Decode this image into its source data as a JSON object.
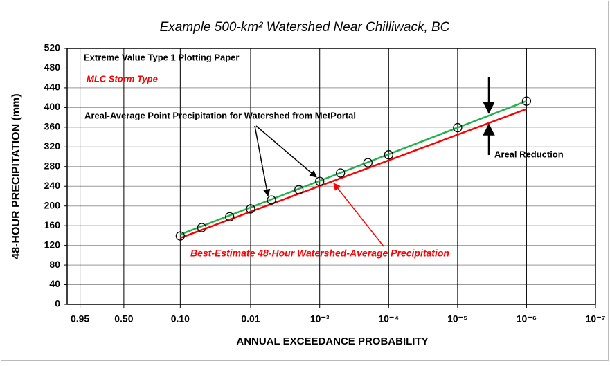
{
  "chart_data": {
    "type": "line",
    "title": "Example 500-km² Watershed Near Chilliwack, BC",
    "x_label": "ANNUAL EXCEEDANCE PROBABILITY",
    "y_label": "48-HOUR   PRECIPITATION (mm)",
    "x_scale": "gumbel",
    "xlim": [
      0.99,
      1e-07
    ],
    "xticks": [
      {
        "value": 0.95,
        "label": "0.95"
      },
      {
        "value": 0.5,
        "label": "0.50"
      },
      {
        "value": 0.1,
        "label": "0.10"
      },
      0.01,
      {
        "value": 0.001,
        "label": "10⁻³"
      },
      {
        "value": 0.0001,
        "label": "10⁻⁴"
      },
      {
        "value": 1e-05,
        "label": "10⁻⁵"
      },
      {
        "value": 1e-06,
        "label": "10⁻⁶"
      },
      {
        "value": 1e-07,
        "label": "10⁻⁷"
      }
    ],
    "ylim": [
      0,
      520
    ],
    "yticks": [
      0,
      40,
      80,
      120,
      160,
      200,
      240,
      280,
      320,
      360,
      400,
      440,
      480,
      520
    ],
    "grid": true,
    "series": [
      {
        "color": "#000000",
        "marker": "circle",
        "x": [
          0.1,
          0.05,
          0.02,
          0.01,
          0.005,
          0.002,
          0.001,
          0.0005,
          0.0002,
          0.0001,
          1e-05,
          1e-06
        ],
        "values": [
          139,
          156,
          178,
          194,
          212,
          233,
          250,
          267,
          288,
          304,
          359,
          413
        ]
      },
      {
        "color": "#22b14c",
        "marker": "line",
        "x": [
          0.1,
          1e-06
        ],
        "values": [
          142,
          413
        ]
      },
      {
        "color": "#ff0000",
        "marker": "line",
        "x": [
          0.1,
          1e-06
        ],
        "values": [
          135,
          397
        ]
      }
    ],
    "annotations": [
      "Extreme Value Type 1 Plotting Paper",
      "MLC Storm Type",
      "Areal-Average Point Precipitation for Watershed from MetPortal",
      "Areal Reduction",
      "Best-Estimate 48-Hour Watershed-Average Precipitation"
    ]
  }
}
